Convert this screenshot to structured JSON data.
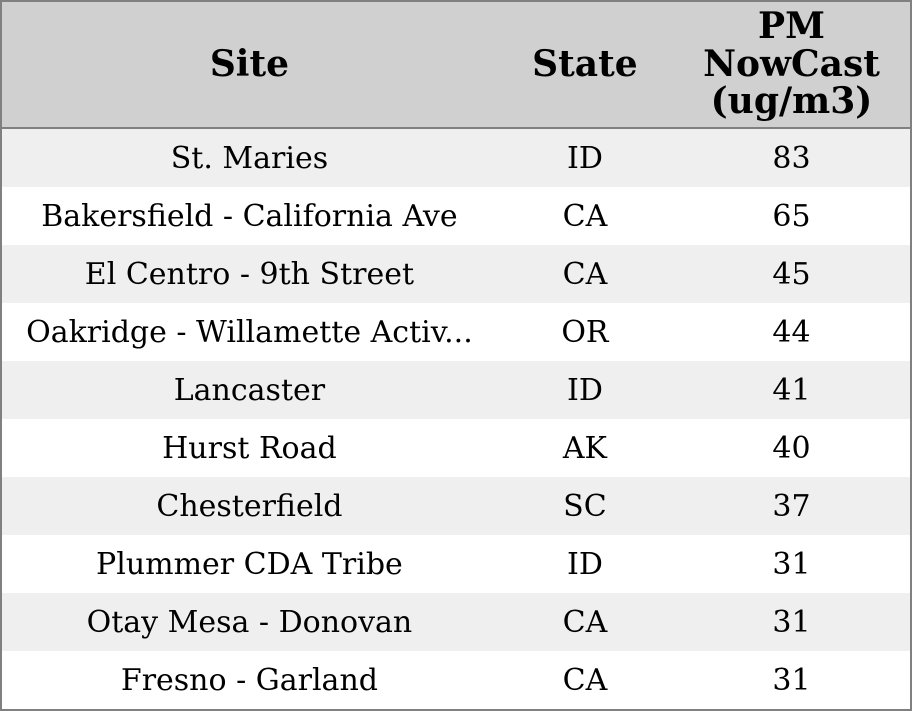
{
  "colors": {
    "header_bg": "#d0d0d0",
    "row_stripe_bg": "#efefef",
    "row_bg": "#ffffff",
    "border": "#808080",
    "text": "#000000"
  },
  "chart_data": {
    "type": "table",
    "columns": [
      {
        "key": "site",
        "label": "Site"
      },
      {
        "key": "state",
        "label": "State"
      },
      {
        "key": "pm",
        "label": "PM\nNowCast\n(ug/m3)"
      }
    ],
    "rows": [
      {
        "site": "St. Maries",
        "state": "ID",
        "pm": 83
      },
      {
        "site": "Bakersfield - California Ave",
        "state": "CA",
        "pm": 65
      },
      {
        "site": "El Centro - 9th Street",
        "state": "CA",
        "pm": 45
      },
      {
        "site": "Oakridge - Willamette Activ...",
        "state": "OR",
        "pm": 44
      },
      {
        "site": "Lancaster",
        "state": "ID",
        "pm": 41
      },
      {
        "site": "Hurst Road",
        "state": "AK",
        "pm": 40
      },
      {
        "site": "Chesterfield",
        "state": "SC",
        "pm": 37
      },
      {
        "site": "Plummer CDA Tribe",
        "state": "ID",
        "pm": 31
      },
      {
        "site": "Otay Mesa - Donovan",
        "state": "CA",
        "pm": 31
      },
      {
        "site": "Fresno - Garland",
        "state": "CA",
        "pm": 31
      }
    ]
  }
}
